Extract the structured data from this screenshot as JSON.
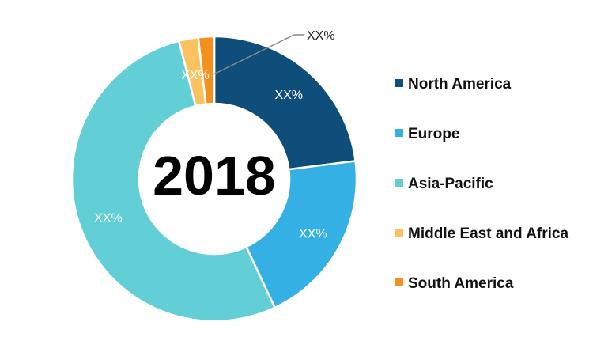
{
  "chart_data": {
    "type": "pie",
    "variant": "donut",
    "center_label": "2018",
    "legend_placement": "right",
    "slices": [
      {
        "name": "North America",
        "value": 23,
        "label": "XX%",
        "color": "#0f4e7a"
      },
      {
        "name": "Europe",
        "value": 20,
        "label": "XX%",
        "color": "#35b0e4"
      },
      {
        "name": "Asia-Pacific",
        "value": 53,
        "label": "XX%",
        "color": "#62cfd6"
      },
      {
        "name": "Middle East and Africa",
        "value": 2.2,
        "label": "XX%",
        "color": "#fbc35f"
      },
      {
        "name": "South America",
        "value": 1.8,
        "label": "XX%",
        "color": "#f5901e"
      }
    ],
    "callout_label": "XX%"
  }
}
